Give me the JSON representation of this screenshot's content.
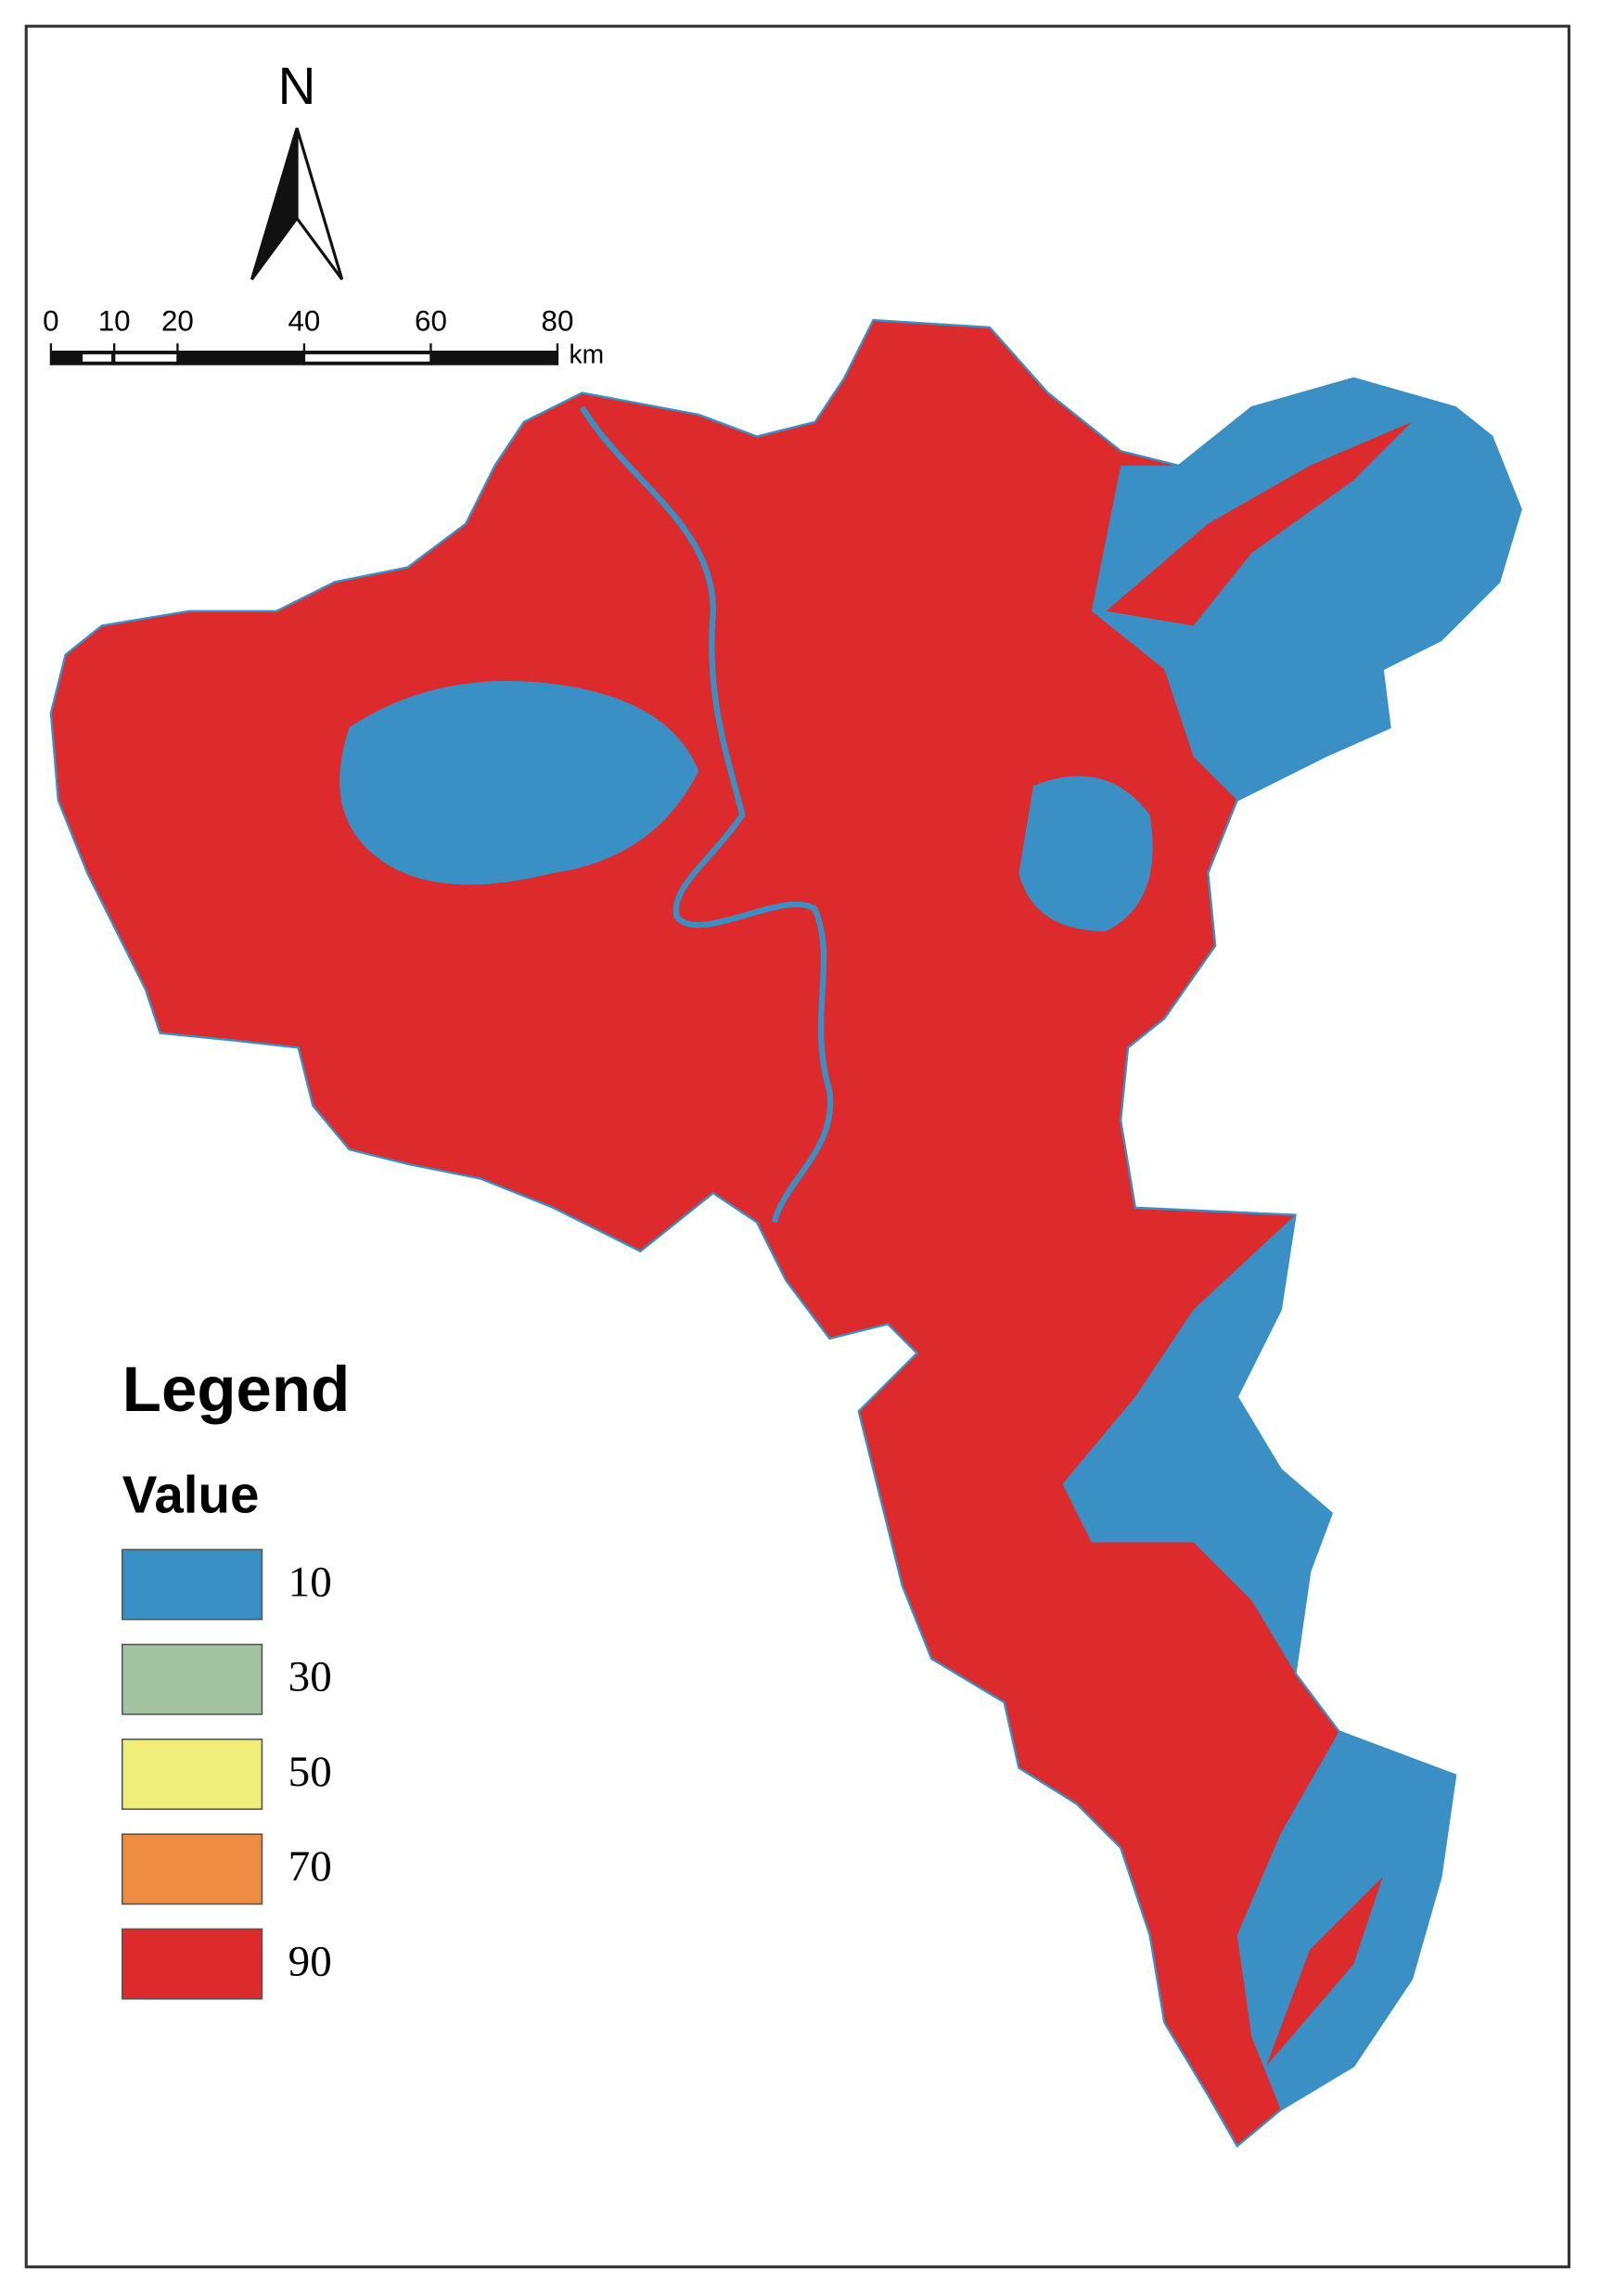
{
  "north_arrow": {
    "label": "N"
  },
  "scale_bar": {
    "ticks": [
      0,
      10,
      20,
      40,
      60,
      80
    ],
    "unit": "km"
  },
  "legend": {
    "title": "Legend",
    "subtitle": "Value",
    "items": [
      {
        "value": 10,
        "color": "#3a8fc4"
      },
      {
        "value": 30,
        "color": "#a3c3a0"
      },
      {
        "value": 50,
        "color": "#eeee78"
      },
      {
        "value": 70,
        "color": "#ef8c44"
      },
      {
        "value": 90,
        "color": "#dd2a2c"
      }
    ]
  }
}
